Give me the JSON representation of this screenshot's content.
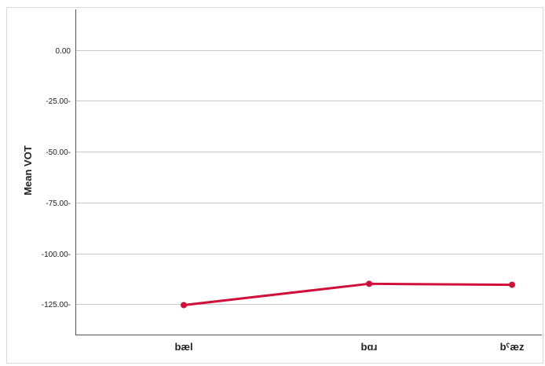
{
  "chart_data": {
    "type": "line",
    "title": "",
    "xlabel": "",
    "ylabel": "Mean VOT",
    "categories": [
      "bæl",
      "bɑɹ",
      "bˤæz"
    ],
    "series": [
      {
        "values": [
          -125.5,
          -115.0,
          -115.5
        ]
      }
    ],
    "ylim": [
      -140,
      20
    ],
    "yticks": [
      0,
      -25,
      -50,
      -75,
      -100,
      -125
    ],
    "ytick_labels": [
      "0.00",
      "-25.00-",
      "-50.00-",
      "-75.00-",
      "-100.00-",
      "-125.00-"
    ],
    "grid": true,
    "legend": "none",
    "line_color": "#d0103a"
  }
}
